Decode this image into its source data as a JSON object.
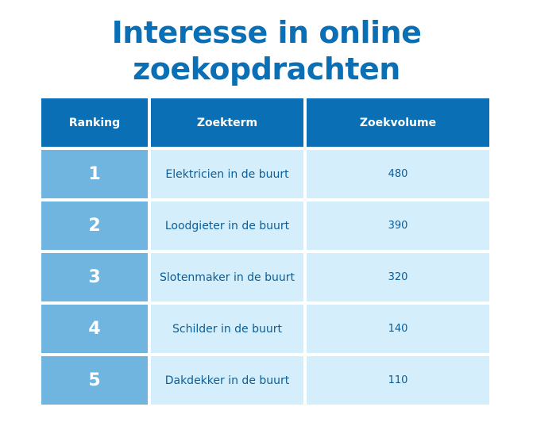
{
  "title": {
    "line1": "Interesse in online",
    "line2": "zoekopdrachten"
  },
  "table": {
    "headers": [
      "Ranking",
      "Zoekterm",
      "Zoekvolume"
    ],
    "rows": [
      {
        "rank": "1",
        "term": "Elektricien in de buurt",
        "volume": "480"
      },
      {
        "rank": "2",
        "term": "Loodgieter in de buurt",
        "volume": "390"
      },
      {
        "rank": "3",
        "term": "Slotenmaker in de buurt",
        "volume": "320"
      },
      {
        "rank": "4",
        "term": "Schilder in de buurt",
        "volume": "140"
      },
      {
        "rank": "5",
        "term": "Dakdekker in de buurt",
        "volume": "110"
      }
    ]
  },
  "colors": {
    "title": "#0a6fb4",
    "header_bg": "#0a6fb4",
    "rank_bg": "#6fb5e0",
    "cell_bg": "#d4eefb"
  }
}
